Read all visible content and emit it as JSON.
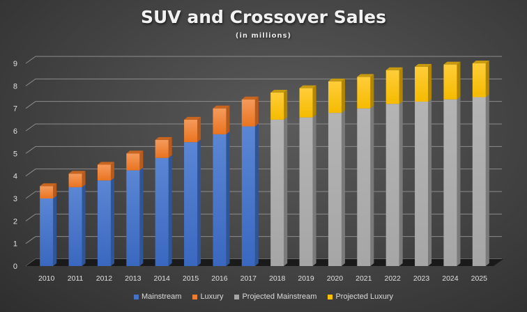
{
  "chart_data": {
    "type": "bar",
    "stacked": true,
    "style": "3d-column",
    "title": "SUV and Crossover Sales",
    "subtitle": "(in millions)",
    "xlabel": "",
    "ylabel": "",
    "ylim": [
      0,
      9
    ],
    "yticks": [
      "0",
      "1",
      "2",
      "3",
      "4",
      "5",
      "6",
      "7",
      "8",
      "9"
    ],
    "grid": true,
    "legend_position": "bottom",
    "categories": [
      "2010",
      "2011",
      "2012",
      "2013",
      "2014",
      "2015",
      "2016",
      "2017",
      "2018",
      "2019",
      "2020",
      "2021",
      "2022",
      "2023",
      "2024",
      "2025"
    ],
    "series": [
      {
        "name": "Mainstream",
        "color": "#4472c4",
        "values": [
          3.0,
          3.5,
          3.8,
          4.25,
          4.8,
          5.5,
          5.85,
          6.2,
          null,
          null,
          null,
          null,
          null,
          null,
          null,
          null
        ]
      },
      {
        "name": "Luxury",
        "color": "#ed7d31",
        "values": [
          0.55,
          0.6,
          0.7,
          0.75,
          0.8,
          1.0,
          1.15,
          1.2,
          null,
          null,
          null,
          null,
          null,
          null,
          null,
          null
        ]
      },
      {
        "name": "Projected Mainstream",
        "color": "#a5a5a5",
        "values": [
          null,
          null,
          null,
          null,
          null,
          null,
          null,
          null,
          6.5,
          6.6,
          6.8,
          7.0,
          7.2,
          7.3,
          7.4,
          7.5
        ]
      },
      {
        "name": "Projected Luxury",
        "color": "#ffc000",
        "values": [
          null,
          null,
          null,
          null,
          null,
          null,
          null,
          null,
          1.2,
          1.3,
          1.4,
          1.4,
          1.5,
          1.55,
          1.55,
          1.5
        ]
      }
    ]
  }
}
